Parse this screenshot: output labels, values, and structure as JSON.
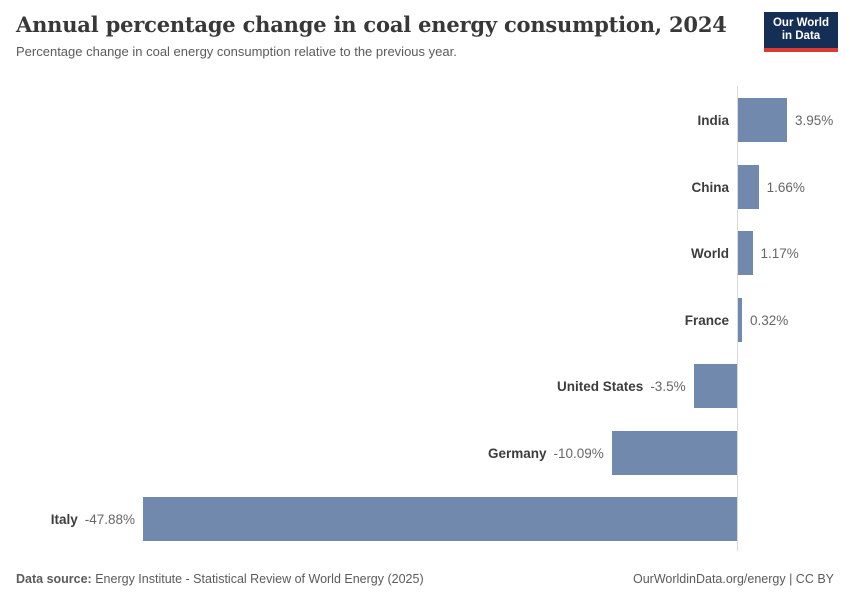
{
  "header": {
    "title": "Annual percentage change in coal energy consumption, 2024",
    "subtitle": "Percentage change in coal energy consumption relative to the previous year.",
    "logo": {
      "line1": "Our World",
      "line2": "in Data",
      "bg_color": "#152e56",
      "accent_color": "#d93a34"
    }
  },
  "chart_data": {
    "type": "bar",
    "orientation": "horizontal",
    "categories": [
      "India",
      "China",
      "World",
      "France",
      "United States",
      "Germany",
      "Italy"
    ],
    "values": [
      3.95,
      1.66,
      1.17,
      0.32,
      -3.5,
      -10.09,
      -47.88
    ],
    "value_labels": [
      "3.95%",
      "1.66%",
      "1.17%",
      "0.32%",
      "-3.5%",
      "-10.09%",
      "-47.88%"
    ],
    "title": "Annual percentage change in coal energy consumption, 2024",
    "xlabel": "",
    "ylabel": "",
    "xlim": [
      -47.88,
      3.95
    ],
    "grid": false,
    "legend": false,
    "bar_color": "#7089ad",
    "axis_color": "#d9d9d9"
  },
  "footer": {
    "source_label": "Data source:",
    "source_text": "Energy Institute - Statistical Review of World Energy (2025)",
    "credit": "OurWorldinData.org/energy | CC BY"
  }
}
